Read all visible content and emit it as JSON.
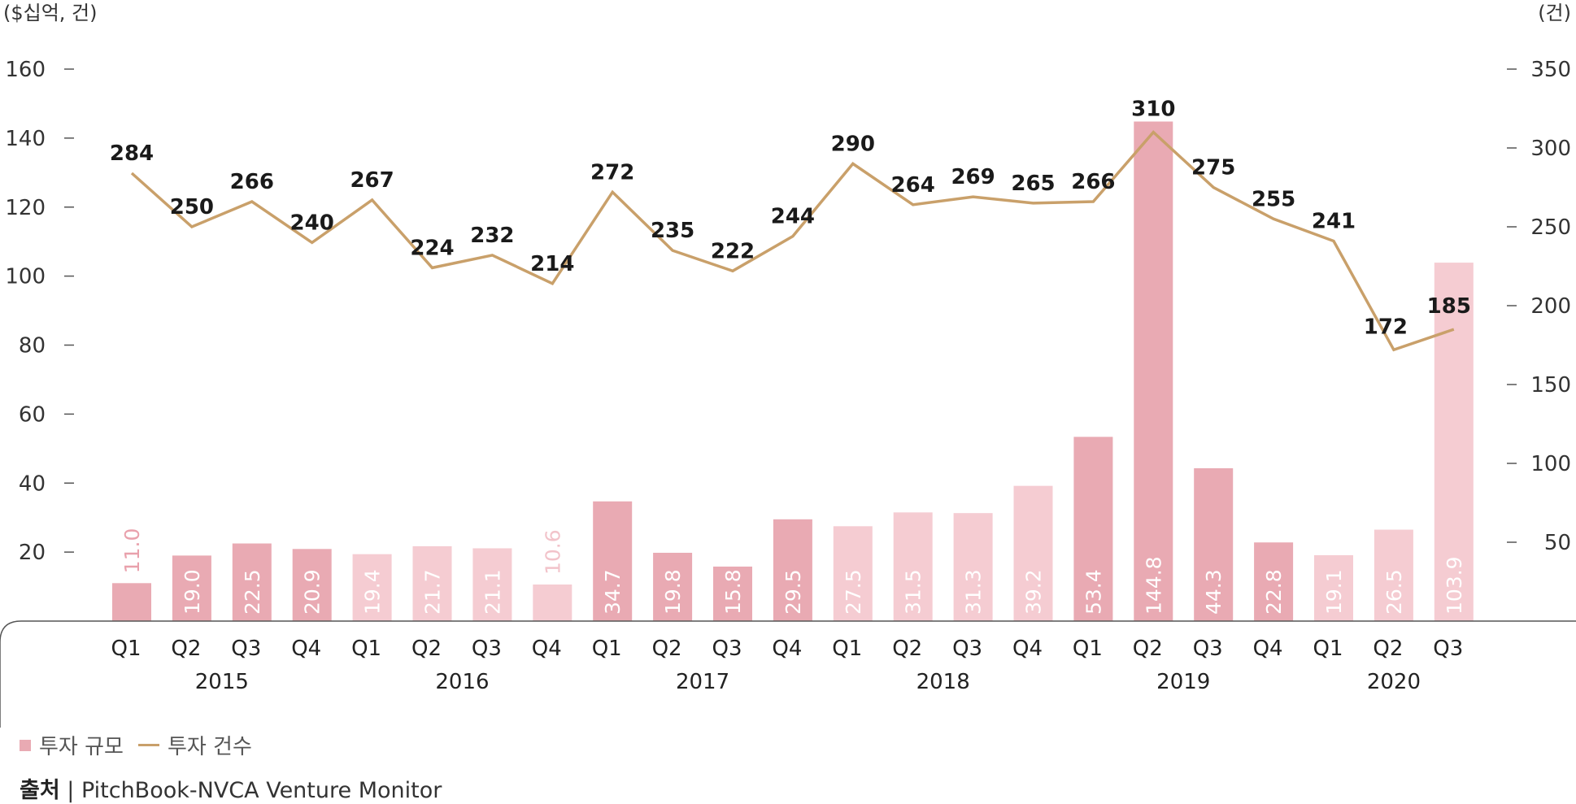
{
  "chart_data": {
    "type": "bar+line",
    "left_axis_unit": "($십억, 건)",
    "right_axis_unit": "(건)",
    "left_ticks": [
      20,
      40,
      60,
      80,
      100,
      120,
      140,
      160
    ],
    "right_ticks": [
      50,
      100,
      150,
      200,
      250,
      300,
      350
    ],
    "left_ylim": [
      0,
      160
    ],
    "right_ylim": [
      0,
      350
    ],
    "categories": [
      "Q1",
      "Q2",
      "Q3",
      "Q4",
      "Q1",
      "Q2",
      "Q3",
      "Q4",
      "Q1",
      "Q2",
      "Q3",
      "Q4",
      "Q1",
      "Q2",
      "Q3",
      "Q4",
      "Q1",
      "Q2",
      "Q3",
      "Q4",
      "Q1",
      "Q2",
      "Q3"
    ],
    "years": [
      {
        "label": "2015",
        "start": 0,
        "end": 3
      },
      {
        "label": "2016",
        "start": 4,
        "end": 7
      },
      {
        "label": "2017",
        "start": 8,
        "end": 11
      },
      {
        "label": "2018",
        "start": 12,
        "end": 15
      },
      {
        "label": "2019",
        "start": 16,
        "end": 19
      },
      {
        "label": "2020",
        "start": 20,
        "end": 22
      }
    ],
    "series": [
      {
        "name": "투자 규모",
        "type": "bar",
        "axis": "left",
        "values": [
          11.0,
          19.0,
          22.5,
          20.9,
          19.4,
          21.7,
          21.1,
          10.6,
          34.7,
          19.8,
          15.8,
          29.5,
          27.5,
          31.5,
          31.3,
          39.2,
          53.4,
          144.8,
          44.3,
          22.8,
          19.1,
          26.5,
          103.9
        ],
        "labels": [
          "11.0",
          "19.0",
          "22.5",
          "20.9",
          "19.4",
          "21.7",
          "21.1",
          "10.6",
          "34.7",
          "19.8",
          "15.8",
          "29.5",
          "27.5",
          "31.5",
          "31.3",
          "39.2",
          "53.4",
          "144.8",
          "44.3",
          "22.8",
          "19.1",
          "26.5",
          "103.9"
        ],
        "shade": [
          "dark",
          "dark",
          "dark",
          "dark",
          "light",
          "light",
          "light",
          "light",
          "dark",
          "dark",
          "dark",
          "dark",
          "light",
          "light",
          "light",
          "light",
          "dark",
          "dark",
          "dark",
          "dark",
          "light",
          "light",
          "light"
        ]
      },
      {
        "name": "투자 건수",
        "type": "line",
        "axis": "right",
        "values": [
          284,
          250,
          266,
          240,
          267,
          224,
          232,
          214,
          272,
          235,
          222,
          244,
          290,
          264,
          269,
          265,
          266,
          310,
          275,
          255,
          241,
          172,
          185
        ]
      }
    ],
    "colors": {
      "bar_dark": "#e9aab3",
      "bar_light": "#f5ccd2",
      "bar_label_on_bar": "#ffffff",
      "bar_label_above_dark": "#e9a1ac",
      "bar_label_above_light": "#f2c3ca",
      "line": "#c9a06a",
      "axis_line": "#555555"
    },
    "grid": false
  },
  "legend": {
    "bar_label": "투자 규모",
    "line_label": "투자 건수"
  },
  "source": {
    "label": "출처",
    "text": " | PitchBook-NVCA Venture Monitor"
  }
}
